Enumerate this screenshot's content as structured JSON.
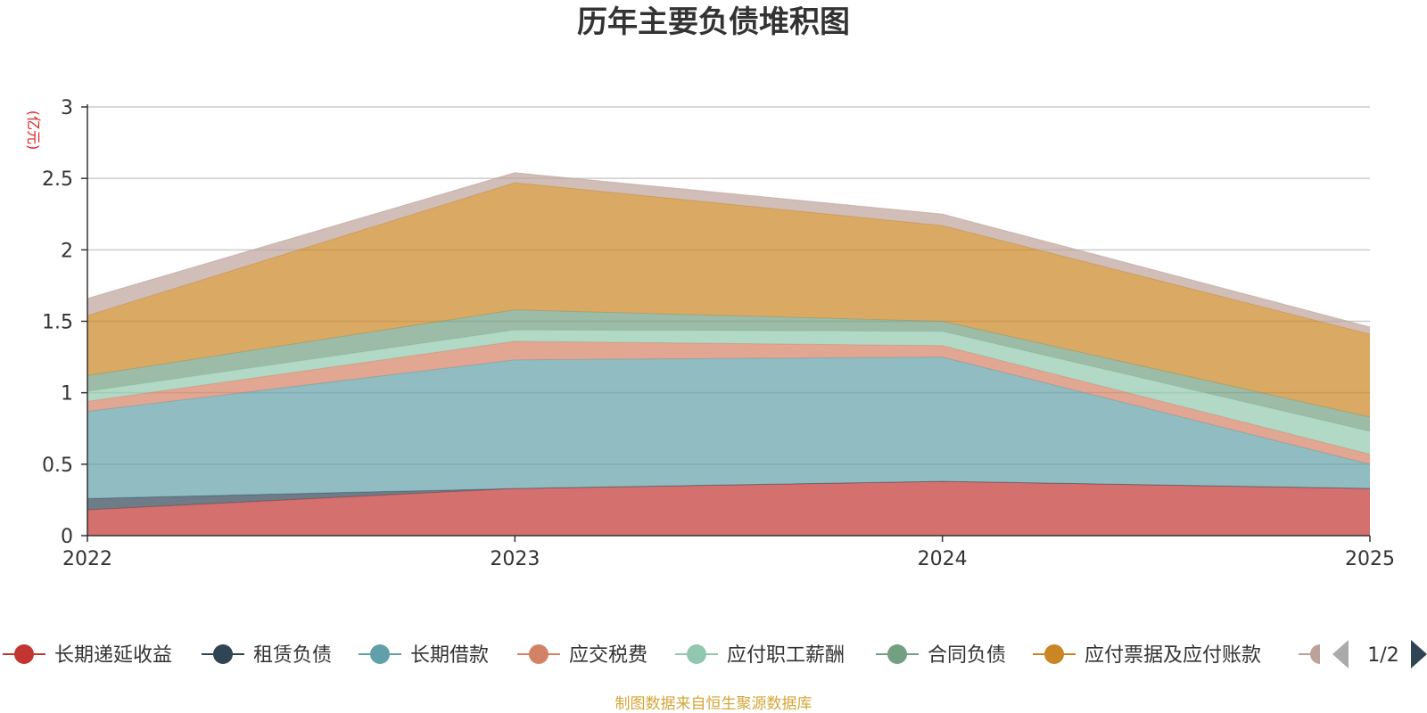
{
  "chart_data": {
    "type": "area",
    "stacked": true,
    "title": "历年主要负债堆积图",
    "ylabel": "(亿元)",
    "x": [
      "2022",
      "2023",
      "2024",
      "2025"
    ],
    "ylim": [
      0,
      3
    ],
    "yticks": [
      "0",
      "0.5",
      "1",
      "1.5",
      "2",
      "2.5",
      "3"
    ],
    "grid": true,
    "legend_position": "bottom",
    "series": [
      {
        "name": "长期递延收益",
        "color": "#c23531",
        "values": [
          0.18,
          0.33,
          0.38,
          0.33
        ]
      },
      {
        "name": "租赁负债",
        "color": "#2f4554",
        "values": [
          0.08,
          0.0,
          0.0,
          0.0
        ]
      },
      {
        "name": "长期借款",
        "color": "#61a0a8",
        "values": [
          0.61,
          0.9,
          0.87,
          0.17
        ]
      },
      {
        "name": "应交税费",
        "color": "#d48265",
        "values": [
          0.07,
          0.13,
          0.08,
          0.07
        ]
      },
      {
        "name": "应付职工薪酬",
        "color": "#91c7ae",
        "values": [
          0.07,
          0.08,
          0.1,
          0.16
        ]
      },
      {
        "name": "合同负债",
        "color": "#749f83",
        "values": [
          0.11,
          0.14,
          0.07,
          0.1
        ]
      },
      {
        "name": "应付票据及应付账款",
        "color": "#ca8622",
        "values": [
          0.42,
          0.89,
          0.67,
          0.58
        ]
      },
      {
        "name": "",
        "color": "#bda29a",
        "values": [
          0.12,
          0.07,
          0.08,
          0.05
        ]
      }
    ]
  },
  "legend": {
    "page_indicator": "1/2"
  },
  "footer": {
    "source": "制图数据来自恒生聚源数据库"
  }
}
